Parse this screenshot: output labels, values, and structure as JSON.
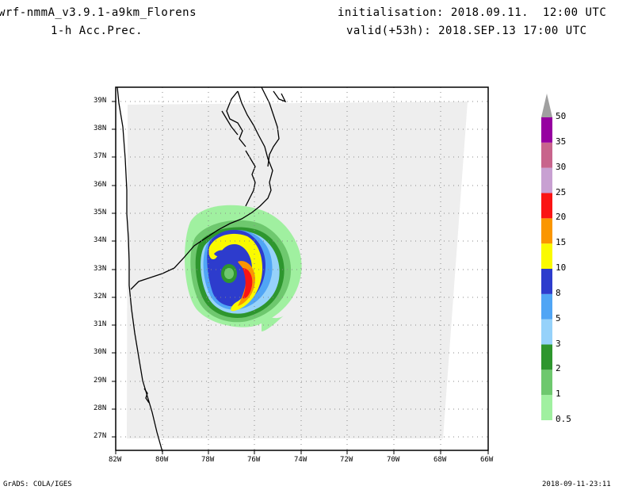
{
  "header": {
    "model": "wrf-nmmA_v3.9.1-a9km_Florens",
    "field": "1-h Acc.Prec.",
    "init": "initialisation: 2018.09.11.  12:00 UTC",
    "valid": "valid(+53h): 2018.SEP.13 17:00 UTC"
  },
  "footer": {
    "credit": "GrADS: COLA/IGES",
    "timestamp": "2018-09-11-23:11"
  },
  "axes": {
    "lon_labels": [
      "82W",
      "80W",
      "78W",
      "76W",
      "74W",
      "72W",
      "70W",
      "68W",
      "66W"
    ],
    "lat_labels": [
      "39N",
      "38N",
      "37N",
      "36N",
      "35N",
      "34N",
      "33N",
      "32N",
      "31N",
      "30N",
      "29N",
      "28N",
      "27N"
    ],
    "lon_range": [
      -82,
      -66
    ],
    "lat_range": [
      26.5,
      39.4
    ]
  },
  "colorbar": {
    "levels": [
      "0.5",
      "1",
      "2",
      "3",
      "5",
      "8",
      "10",
      "15",
      "20",
      "25",
      "30",
      "35",
      "50"
    ],
    "colors": [
      "#a0f0a0",
      "#6ec86e",
      "#2e962e",
      "#96d2fa",
      "#50a5f5",
      "#2d3ccd",
      "#fafa00",
      "#fa9600",
      "#fa1414",
      "#c8a0d2",
      "#c8648c",
      "#9600a0",
      "#a0a0a0"
    ]
  },
  "map_colors": {
    "domain": "#eeeeee",
    "coast": "#000000",
    "grid": "#888888"
  }
}
